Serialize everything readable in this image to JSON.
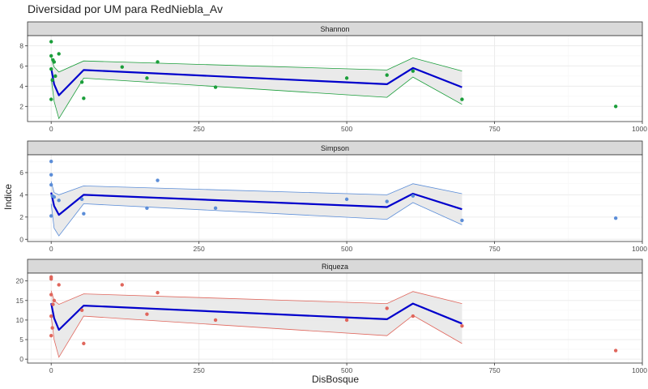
{
  "title": "Diversidad por UM para RedNiebla_Av",
  "xlabel": "DisBosque",
  "ylabel": "Indice",
  "colors": {
    "fit_line": "#0000CC",
    "band_fill": "#E6E6E6",
    "strip_fill": "#D9D9D9",
    "panel_border": "#333333",
    "grid_major": "#EBEBEB",
    "grid_minor": "#F5F5F5"
  },
  "chart_data": [
    {
      "type": "scatter",
      "panel": "Shannon",
      "color": "#1A9E3A",
      "xlim": [
        -40,
        1000
      ],
      "ylim": [
        0.5,
        9.0
      ],
      "x_ticks": [
        0,
        250,
        500,
        750,
        1000
      ],
      "x_tick_labels": [
        "0",
        "250",
        "500",
        "750",
        "1000"
      ],
      "y_ticks": [
        2,
        4,
        6,
        8
      ],
      "y_tick_labels": [
        "2",
        "4",
        "6",
        "8"
      ],
      "points": {
        "x": [
          0,
          0,
          0,
          0,
          2,
          3,
          5,
          7,
          13,
          52,
          55,
          120,
          162,
          180,
          278,
          500,
          568,
          612,
          695,
          955
        ],
        "y": [
          8.4,
          7.0,
          5.7,
          2.7,
          4.6,
          6.6,
          6.4,
          5.0,
          7.2,
          4.4,
          2.8,
          5.9,
          4.8,
          6.4,
          3.9,
          4.8,
          5.1,
          5.5,
          2.7,
          2.0
        ]
      },
      "fit": {
        "x": [
          0,
          5,
          13,
          55,
          568,
          612,
          695
        ],
        "y": [
          5.8,
          4.2,
          3.1,
          5.6,
          4.2,
          5.8,
          3.9
        ]
      },
      "band_upper": [
        6.8,
        5.9,
        5.4,
        6.5,
        5.6,
        6.8,
        5.5
      ],
      "band_lower": [
        4.8,
        2.5,
        0.8,
        4.8,
        2.9,
        4.9,
        2.2
      ]
    },
    {
      "type": "scatter",
      "panel": "Simpson",
      "color": "#5B8DD8",
      "xlim": [
        -40,
        1000
      ],
      "ylim": [
        -0.2,
        7.6
      ],
      "x_ticks": [
        0,
        250,
        500,
        750,
        1000
      ],
      "x_tick_labels": [
        "0",
        "250",
        "500",
        "750",
        "1000"
      ],
      "y_ticks": [
        0,
        2,
        4,
        6
      ],
      "y_tick_labels": [
        "0",
        "2",
        "4",
        "6"
      ],
      "points": {
        "x": [
          0,
          0,
          0,
          0,
          2,
          5,
          13,
          52,
          55,
          162,
          180,
          278,
          500,
          568,
          612,
          695,
          955
        ],
        "y": [
          7.0,
          5.8,
          4.9,
          2.1,
          3.9,
          3.8,
          3.5,
          3.6,
          2.3,
          2.8,
          5.3,
          2.8,
          3.6,
          3.4,
          3.9,
          1.7,
          1.9
        ]
      },
      "fit": {
        "x": [
          0,
          5,
          13,
          55,
          568,
          612,
          695
        ],
        "y": [
          4.2,
          3.0,
          2.2,
          4.0,
          2.9,
          4.1,
          2.7
        ]
      },
      "band_upper": [
        5.2,
        4.2,
        4.0,
        4.8,
        4.0,
        5.0,
        4.1
      ],
      "band_lower": [
        3.2,
        1.0,
        0.3,
        3.2,
        1.8,
        3.3,
        1.3
      ]
    },
    {
      "type": "scatter",
      "panel": "Riqueza",
      "color": "#E0665C",
      "xlim": [
        -40,
        1000
      ],
      "ylim": [
        -1,
        22
      ],
      "x_ticks": [
        0,
        250,
        500,
        750,
        1000
      ],
      "x_tick_labels": [
        "0",
        "250",
        "500",
        "750",
        "1000"
      ],
      "y_ticks": [
        0,
        5,
        10,
        15,
        20
      ],
      "y_tick_labels": [
        "0",
        "5",
        "10",
        "15",
        "20"
      ],
      "points": {
        "x": [
          0,
          0,
          0,
          0,
          0,
          2,
          3,
          5,
          13,
          52,
          55,
          120,
          162,
          180,
          278,
          500,
          568,
          612,
          695,
          955
        ],
        "y": [
          21,
          20.5,
          16.5,
          11,
          6,
          8,
          14,
          15,
          19,
          12.5,
          4,
          19,
          11.5,
          17,
          10,
          10,
          13,
          11,
          8.5,
          2.2
        ]
      },
      "fit": {
        "x": [
          0,
          5,
          13,
          55,
          568,
          612,
          695
        ],
        "y": [
          14.3,
          10.5,
          7.5,
          13.7,
          10.2,
          14.2,
          9.1
        ]
      },
      "band_upper": [
        17.5,
        15.0,
        14.0,
        16.7,
        14.2,
        17.3,
        14.2
      ],
      "band_lower": [
        11.0,
        5.0,
        0.5,
        11.0,
        6.0,
        11.2,
        4.0
      ]
    }
  ]
}
